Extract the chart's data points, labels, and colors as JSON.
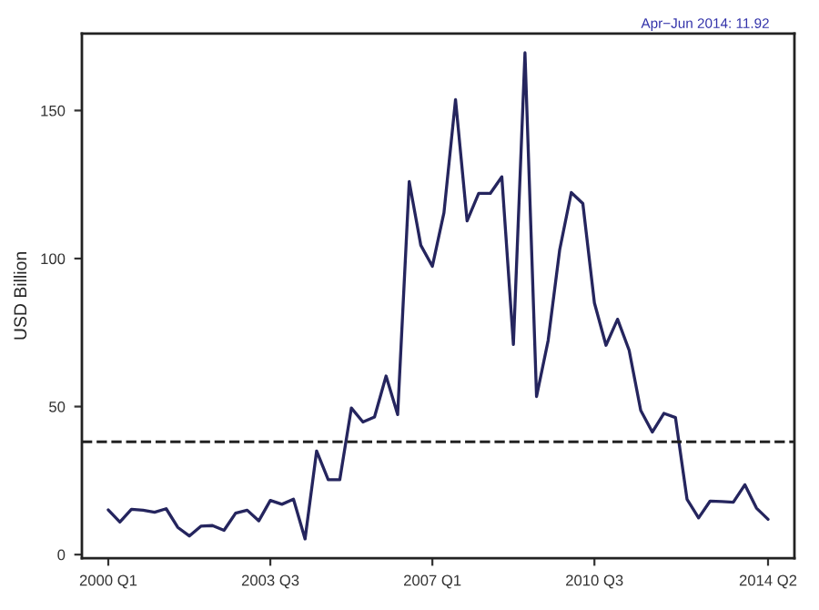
{
  "chart_data": {
    "type": "line",
    "ylabel": "USD Billion",
    "categories": [
      "2000 Q1",
      null,
      null,
      null,
      null,
      null,
      null,
      null,
      null,
      null,
      null,
      null,
      null,
      null,
      "2003 Q3",
      null,
      null,
      null,
      null,
      null,
      null,
      null,
      null,
      null,
      null,
      null,
      null,
      null,
      "2007 Q1",
      null,
      null,
      null,
      null,
      null,
      null,
      null,
      null,
      null,
      null,
      null,
      null,
      null,
      "2010 Q3",
      null,
      null,
      null,
      null,
      null,
      null,
      null,
      null,
      null,
      null,
      null,
      null,
      null,
      null,
      "2014 Q2"
    ],
    "series": [
      {
        "color": "#25255e",
        "values": [
          15.1,
          11,
          15.3,
          15,
          14.3,
          15.5,
          9.2,
          6.3,
          9.6,
          9.8,
          8.2,
          14,
          15,
          11.4,
          18.3,
          17,
          18.7,
          5.3,
          35,
          25.3,
          25.3,
          49.5,
          44.8,
          46.5,
          60.3,
          47.3,
          126,
          104.5,
          97.4,
          115.5,
          153.7,
          112.7,
          122,
          122,
          127.6,
          71,
          169.5,
          53.4,
          72.3,
          103,
          122.3,
          118.6,
          85,
          70.7,
          79.5,
          69,
          48.7,
          41.4,
          47.7,
          46.3,
          18.7,
          12.4,
          18.1,
          17.9,
          17.7,
          23.6,
          15.7,
          11.92
        ]
      }
    ],
    "ylim": [
      -1.2,
      176
    ],
    "yticks": [
      0,
      50,
      100,
      150
    ],
    "ref_lines": [
      {
        "axis": "y",
        "value": 38.1,
        "color": "#222222",
        "line_style": "dashed"
      }
    ],
    "annotations": [
      "Apr−Jun 2014: 11.92"
    ],
    "grid": false,
    "legend": false,
    "marker": "none",
    "line_style": "solid"
  }
}
